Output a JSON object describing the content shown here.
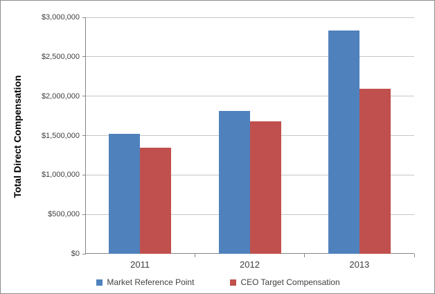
{
  "chart_data": {
    "type": "bar",
    "title": "",
    "xlabel": "",
    "ylabel": "Total Direct Compensation",
    "categories": [
      "2011",
      "2012",
      "2013"
    ],
    "series": [
      {
        "name": "Market Reference Point",
        "color": "#4F81BD",
        "values": [
          1520000,
          1810000,
          2830000
        ]
      },
      {
        "name": "CEO Target Compensation",
        "color": "#C0504D",
        "values": [
          1350000,
          1680000,
          2090000
        ]
      }
    ],
    "ylim": [
      0,
      3000000
    ],
    "y_tick_step": 500000,
    "y_ticks": [
      "$0",
      "$500,000",
      "$1,000,000",
      "$1,500,000",
      "$2,000,000",
      "$2,500,000",
      "$3,000,000"
    ],
    "grid": true,
    "legend_position": "bottom"
  },
  "colors": {
    "axis": "#868686",
    "gridline": "#c6c6c6",
    "tick_text": "#404040",
    "border": "#8c8c8c",
    "series_blue": "#4F81BD",
    "series_red": "#C0504D"
  }
}
